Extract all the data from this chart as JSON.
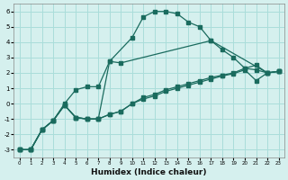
{
  "xlabel": "Humidex (Indice chaleur)",
  "bg_color": "#d5f0ee",
  "grid_color": "#aaddda",
  "line_color": "#1a6b5e",
  "xlim": [
    -0.5,
    23.5
  ],
  "ylim": [
    -3.5,
    6.5
  ],
  "yticks": [
    -3,
    -2,
    -1,
    0,
    1,
    2,
    3,
    4,
    5,
    6
  ],
  "xticks": [
    0,
    1,
    2,
    3,
    4,
    5,
    6,
    7,
    8,
    9,
    10,
    11,
    12,
    13,
    14,
    15,
    16,
    17,
    18,
    19,
    20,
    21,
    22,
    23
  ],
  "line1_x": [
    0,
    1,
    2,
    3,
    4,
    5,
    6,
    7,
    8,
    10,
    11,
    12,
    13,
    14,
    15,
    16,
    17,
    22,
    23
  ],
  "line1_y": [
    -3.0,
    -3.0,
    -1.7,
    -1.1,
    0.0,
    0.9,
    1.1,
    1.1,
    2.75,
    4.3,
    5.65,
    6.0,
    6.0,
    5.85,
    5.3,
    5.0,
    4.1,
    2.0,
    2.1
  ],
  "line2_x": [
    0,
    1,
    2,
    3,
    4,
    5,
    6,
    7,
    8,
    9,
    10,
    11,
    12,
    13,
    14,
    15,
    16,
    17,
    18,
    19,
    20,
    21,
    22,
    23
  ],
  "line2_y": [
    -3.0,
    -3.0,
    -1.7,
    -1.1,
    -0.1,
    -0.9,
    -1.0,
    -1.0,
    -0.7,
    -0.5,
    0.0,
    0.4,
    0.6,
    0.9,
    1.1,
    1.3,
    1.5,
    1.7,
    1.85,
    2.0,
    2.3,
    2.5,
    2.0,
    2.1
  ],
  "line3_x": [
    0,
    1,
    2,
    3,
    4,
    5,
    6,
    7,
    8,
    9,
    17,
    18,
    19,
    20,
    21,
    22,
    23
  ],
  "line3_y": [
    -3.0,
    -3.0,
    -1.7,
    -1.1,
    -0.1,
    -0.9,
    -1.0,
    -1.0,
    2.75,
    2.65,
    4.1,
    3.5,
    3.0,
    2.3,
    2.2,
    2.0,
    2.1
  ],
  "line4_x": [
    0,
    1,
    2,
    3,
    4,
    5,
    6,
    7,
    8,
    9,
    10,
    11,
    12,
    13,
    14,
    15,
    16,
    17,
    18,
    19,
    20,
    21,
    22,
    23
  ],
  "line4_y": [
    -3.0,
    -3.0,
    -1.7,
    -1.1,
    -0.1,
    -0.9,
    -1.0,
    -1.0,
    -0.7,
    -0.5,
    0.0,
    0.3,
    0.5,
    0.8,
    1.0,
    1.2,
    1.4,
    1.6,
    1.8,
    1.95,
    2.2,
    1.5,
    2.0,
    2.1
  ]
}
